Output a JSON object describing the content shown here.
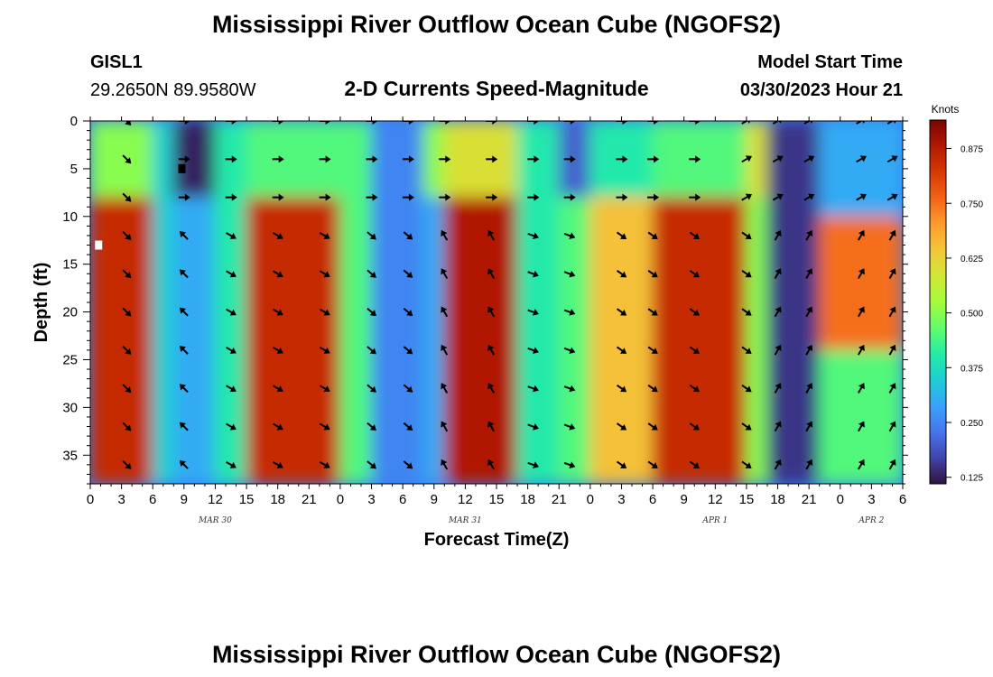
{
  "chart_data": {
    "type": "heatmap",
    "title": "Mississippi River Outflow Ocean Cube (NGOFS2)",
    "bottom_title": "Mississippi River Outflow Ocean Cube (NGOFS2)",
    "station": {
      "id": "GISL1",
      "coords": "29.2650N  89.9580W"
    },
    "subtitle": "2-D Currents Speed-Magnitude",
    "model_start": {
      "label": "Model Start Time",
      "value": "03/30/2023 Hour 21"
    },
    "xlabel": "Forecast Time(Z)",
    "ylabel": "Depth (ft)",
    "x_range_hours": [
      0,
      78
    ],
    "y_range_ft": [
      0,
      38
    ],
    "x_tick_labels": [
      "0",
      "3",
      "6",
      "9",
      "12",
      "15",
      "18",
      "21",
      "0",
      "3",
      "6",
      "9",
      "12",
      "15",
      "18",
      "21",
      "0",
      "3",
      "6",
      "9",
      "12",
      "15",
      "18",
      "21",
      "0",
      "3",
      "6"
    ],
    "date_labels": [
      {
        "text": "MAR 30",
        "hour": 12
      },
      {
        "text": "MAR 31",
        "hour": 36
      },
      {
        "text": "APR 1",
        "hour": 60
      },
      {
        "text": "APR 2",
        "hour": 75
      }
    ],
    "y_ticks": [
      0,
      5,
      10,
      15,
      20,
      25,
      30,
      35
    ],
    "colorbar": {
      "units": "Knots",
      "min": 0.11,
      "max": 0.94,
      "ticks": [
        0.125,
        0.25,
        0.375,
        0.5,
        0.625,
        0.75,
        0.875
      ],
      "tick_labels": [
        "0.125",
        "0.250",
        "0.375",
        "0.500",
        "0.625",
        "0.750",
        "0.875"
      ],
      "colors": [
        "#30123b",
        "#4145ab",
        "#4675ed",
        "#39a2fc",
        "#1bcfd4",
        "#24eca6",
        "#61fc6c",
        "#a4fc3b",
        "#d1e834",
        "#f3c63a",
        "#fe9b2d",
        "#f36315",
        "#d93806",
        "#b11901",
        "#7a0403"
      ]
    },
    "speed_cells": [
      {
        "t0": 0,
        "t1": 6,
        "d0": 0,
        "d1": 8,
        "speed": 0.5
      },
      {
        "t0": 0,
        "t1": 6,
        "d0": 8,
        "d1": 38,
        "speed": 0.85
      },
      {
        "t0": 6,
        "t1": 8,
        "d0": 0,
        "d1": 38,
        "speed": 0.35
      },
      {
        "t0": 8,
        "t1": 12,
        "d0": 0,
        "d1": 8,
        "speed": 0.13
      },
      {
        "t0": 8,
        "t1": 12,
        "d0": 8,
        "d1": 38,
        "speed": 0.3
      },
      {
        "t0": 12,
        "t1": 15,
        "d0": 0,
        "d1": 38,
        "speed": 0.4
      },
      {
        "t0": 15,
        "t1": 24,
        "d0": 0,
        "d1": 8,
        "speed": 0.45
      },
      {
        "t0": 15,
        "t1": 24,
        "d0": 8,
        "d1": 38,
        "speed": 0.85
      },
      {
        "t0": 24,
        "t1": 27,
        "d0": 0,
        "d1": 38,
        "speed": 0.45
      },
      {
        "t0": 27,
        "t1": 32,
        "d0": 0,
        "d1": 38,
        "speed": 0.25
      },
      {
        "t0": 32,
        "t1": 34,
        "d0": 0,
        "d1": 8,
        "speed": 0.5
      },
      {
        "t0": 32,
        "t1": 34,
        "d0": 8,
        "d1": 38,
        "speed": 0.3
      },
      {
        "t0": 34,
        "t1": 41,
        "d0": 0,
        "d1": 8,
        "speed": 0.6
      },
      {
        "t0": 34,
        "t1": 41,
        "d0": 8,
        "d1": 38,
        "speed": 0.88
      },
      {
        "t0": 41,
        "t1": 45,
        "d0": 0,
        "d1": 38,
        "speed": 0.4
      },
      {
        "t0": 45,
        "t1": 48,
        "d0": 0,
        "d1": 8,
        "speed": 0.2
      },
      {
        "t0": 45,
        "t1": 48,
        "d0": 8,
        "d1": 38,
        "speed": 0.45
      },
      {
        "t0": 48,
        "t1": 54,
        "d0": 0,
        "d1": 8,
        "speed": 0.4
      },
      {
        "t0": 48,
        "t1": 54,
        "d0": 8,
        "d1": 38,
        "speed": 0.65
      },
      {
        "t0": 54,
        "t1": 63,
        "d0": 0,
        "d1": 8,
        "speed": 0.45
      },
      {
        "t0": 54,
        "t1": 63,
        "d0": 8,
        "d1": 38,
        "speed": 0.85
      },
      {
        "t0": 63,
        "t1": 65,
        "d0": 0,
        "d1": 8,
        "speed": 0.6
      },
      {
        "t0": 63,
        "t1": 65,
        "d0": 8,
        "d1": 38,
        "speed": 0.5
      },
      {
        "t0": 65,
        "t1": 70,
        "d0": 0,
        "d1": 38,
        "speed": 0.15
      },
      {
        "t0": 70,
        "t1": 78,
        "d0": 0,
        "d1": 10,
        "speed": 0.3
      },
      {
        "t0": 70,
        "t1": 78,
        "d0": 10,
        "d1": 24,
        "speed": 0.75
      },
      {
        "t0": 70,
        "t1": 78,
        "d0": 24,
        "d1": 38,
        "speed": 0.45
      }
    ],
    "arrow_depths_ft": [
      0,
      4,
      8,
      12,
      16,
      20,
      24,
      28,
      32,
      36
    ],
    "arrow_hours": [
      3.5,
      9,
      13.5,
      18,
      22.5,
      27,
      30.5,
      34,
      38.5,
      42.5,
      46,
      51,
      54,
      58,
      63,
      66,
      69,
      74,
      77
    ],
    "arrow_rules": [
      {
        "t0": 0,
        "t1": 6,
        "d0": 0,
        "d1": 38,
        "angle": 45
      },
      {
        "t0": 6,
        "t1": 24,
        "d0": 0,
        "d1": 10,
        "angle": 0
      },
      {
        "t0": 6,
        "t1": 11,
        "d0": 10,
        "d1": 38,
        "angle": -135
      },
      {
        "t0": 11,
        "t1": 24,
        "d0": 10,
        "d1": 38,
        "angle": 30
      },
      {
        "t0": 24,
        "t1": 48,
        "d0": 0,
        "d1": 10,
        "angle": 0
      },
      {
        "t0": 24,
        "t1": 34,
        "d0": 10,
        "d1": 38,
        "angle": 40
      },
      {
        "t0": 34,
        "t1": 41,
        "d0": 10,
        "d1": 38,
        "angle": -120
      },
      {
        "t0": 41,
        "t1": 48,
        "d0": 10,
        "d1": 38,
        "angle": 20
      },
      {
        "t0": 48,
        "t1": 63,
        "d0": 0,
        "d1": 10,
        "angle": 0
      },
      {
        "t0": 48,
        "t1": 65,
        "d0": 10,
        "d1": 38,
        "angle": 35
      },
      {
        "t0": 63,
        "t1": 78,
        "d0": 0,
        "d1": 10,
        "angle": -30
      },
      {
        "t0": 65,
        "t1": 78,
        "d0": 10,
        "d1": 38,
        "angle": -60
      }
    ],
    "markers": [
      {
        "hour": 8.8,
        "depth": 5,
        "color": "#000000"
      },
      {
        "hour": 0.8,
        "depth": 13,
        "color": "#ffffff"
      }
    ],
    "grid": false
  }
}
